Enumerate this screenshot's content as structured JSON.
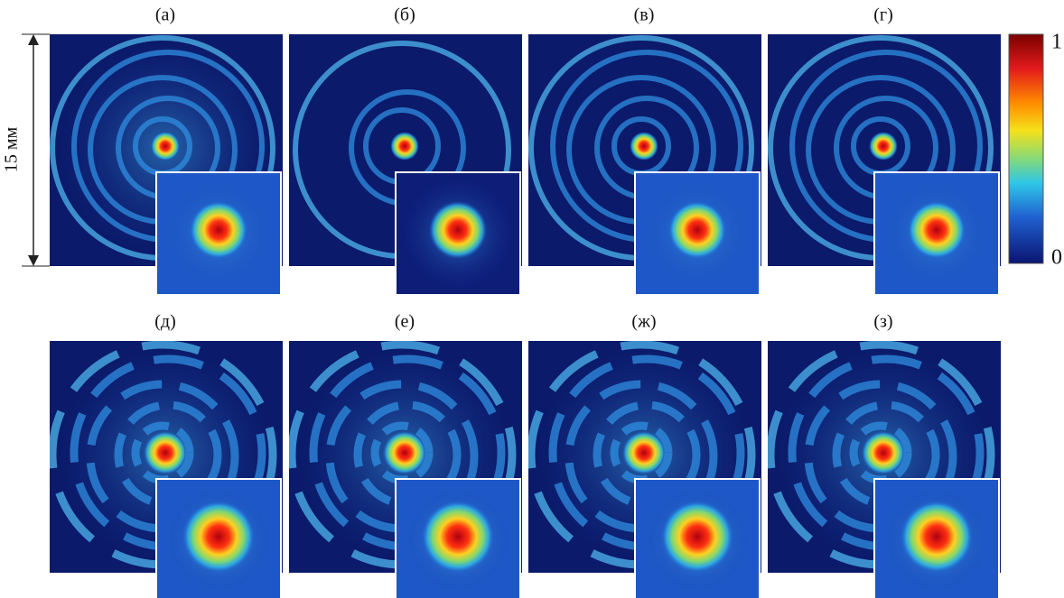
{
  "panels": [
    {
      "label": "(а)"
    },
    {
      "label": "(б)"
    },
    {
      "label": "(в)"
    },
    {
      "label": "(г)"
    },
    {
      "label": "(д)"
    },
    {
      "label": "(е)"
    },
    {
      "label": "(ж)"
    },
    {
      "label": "(з)"
    }
  ],
  "scale": {
    "label": "15 мм"
  },
  "colorbar": {
    "top_label": "1",
    "bottom_label": "0"
  }
}
